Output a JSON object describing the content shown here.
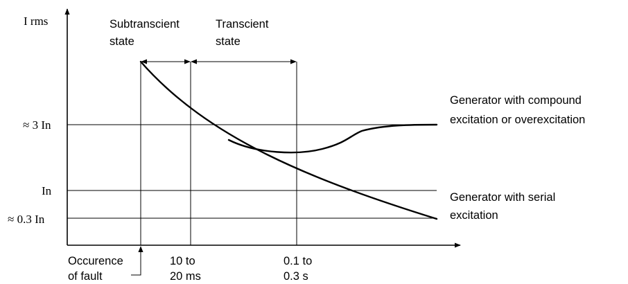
{
  "diagram": {
    "y_axis_label": "I rms",
    "levels": {
      "three_in": "≈ 3 In",
      "in": "In",
      "point_three_in": "≈ 0.3 In"
    },
    "states": {
      "subtransient": [
        "Subtranscient",
        "state"
      ],
      "transient": [
        "Transcient",
        "state"
      ]
    },
    "x_labels": {
      "fault": [
        "Occurence",
        "of fault"
      ],
      "t1": [
        "10 to",
        "20 ms"
      ],
      "t2": [
        "0.1 to",
        "0.3 s"
      ]
    },
    "curves": {
      "compound": [
        "Generator with compound",
        "excitation or overexcitation"
      ],
      "serial": [
        "Generator with serial",
        "excitation"
      ]
    }
  }
}
